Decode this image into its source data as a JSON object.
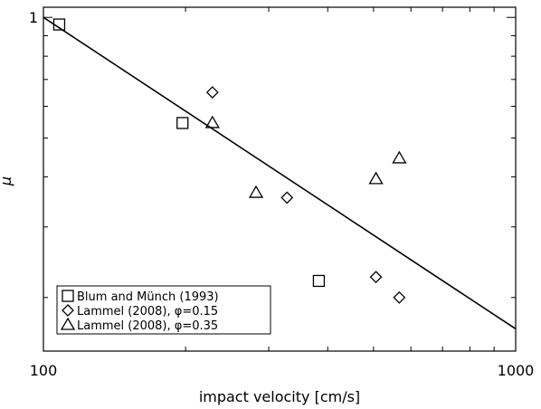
{
  "chart_data": {
    "type": "scatter",
    "title": "",
    "xlabel": "impact velocity [cm/s]",
    "ylabel": "μ",
    "xscale": "log",
    "yscale": "log",
    "xlim": [
      100,
      1000
    ],
    "ylim": [
      0.147,
      1.06
    ],
    "x_tick_labels": [
      "100",
      "1000"
    ],
    "y_tick_labels": [
      "1"
    ],
    "legend_placement": "bottom-left",
    "legend": [
      {
        "marker": "square",
        "label": "Blum and Münch (1993)"
      },
      {
        "marker": "diamond",
        "label": "Lammel (2008), φ=0.15"
      },
      {
        "marker": "triangle",
        "label": "Lammel (2008), φ=0.35"
      }
    ],
    "series": [
      {
        "name": "Blum and Münch (1993)",
        "marker": "square",
        "x": [
          108,
          197,
          383
        ],
        "y": [
          0.96,
          0.545,
          0.22
        ]
      },
      {
        "name": "Lammel (2008), φ=0.15",
        "marker": "diamond",
        "x": [
          228,
          328,
          506,
          567
        ],
        "y": [
          0.65,
          0.355,
          0.225,
          0.2
        ]
      },
      {
        "name": "Lammel (2008), φ=0.35",
        "marker": "triangle",
        "x": [
          228,
          282,
          506,
          567
        ],
        "y": [
          0.545,
          0.365,
          0.395,
          0.445
        ]
      }
    ],
    "fit_line": {
      "x": [
        100,
        1000
      ],
      "y": [
        1.0,
        0.167
      ]
    }
  }
}
